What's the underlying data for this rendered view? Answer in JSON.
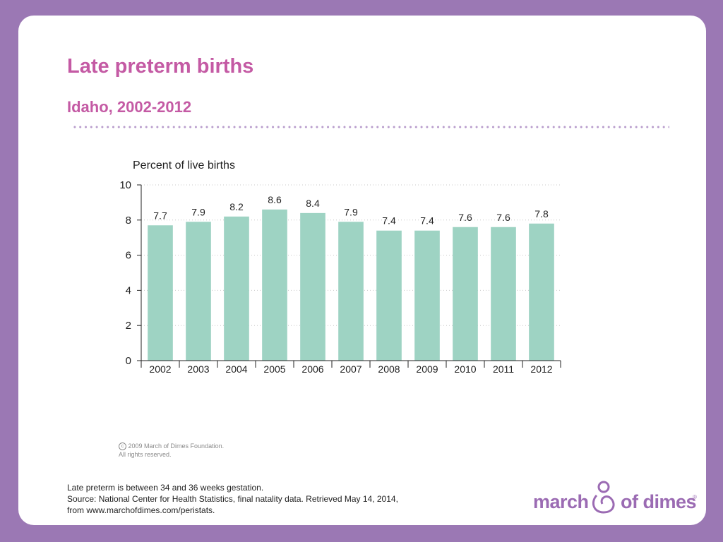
{
  "slide": {
    "title": "Late preterm births",
    "subtitle": "Idaho, 2002-2012"
  },
  "chart_data": {
    "type": "bar",
    "ylabel": "Percent of live births",
    "categories": [
      "2002",
      "2003",
      "2004",
      "2005",
      "2006",
      "2007",
      "2008",
      "2009",
      "2010",
      "2011",
      "2012"
    ],
    "values": [
      7.7,
      7.9,
      8.2,
      8.6,
      8.4,
      7.9,
      7.4,
      7.4,
      7.6,
      7.6,
      7.8
    ],
    "value_labels": [
      "7.7",
      "7.9",
      "8.2",
      "8.6",
      "8.4",
      "7.9",
      "7.4",
      "7.4",
      "7.6",
      "7.6",
      "7.8"
    ],
    "ylim": [
      0,
      10
    ],
    "yticks": [
      0,
      2,
      4,
      6,
      8,
      10
    ],
    "grid": true,
    "bar_color": "#9ed3c3"
  },
  "copyright": {
    "symbol": "c",
    "line1": "2009 March of Dimes Foundation.",
    "line2": "All rights reserved."
  },
  "footnote": {
    "line1": "Late preterm is between 34 and 36 weeks gestation.",
    "line2": "Source: National Center for Health Statistics, final natality data. Retrieved May 14, 2014,",
    "line3": "from www.marchofdimes.com/peristats."
  },
  "logo": {
    "word1": "march",
    "word2": "of dimes",
    "mark": "®"
  }
}
